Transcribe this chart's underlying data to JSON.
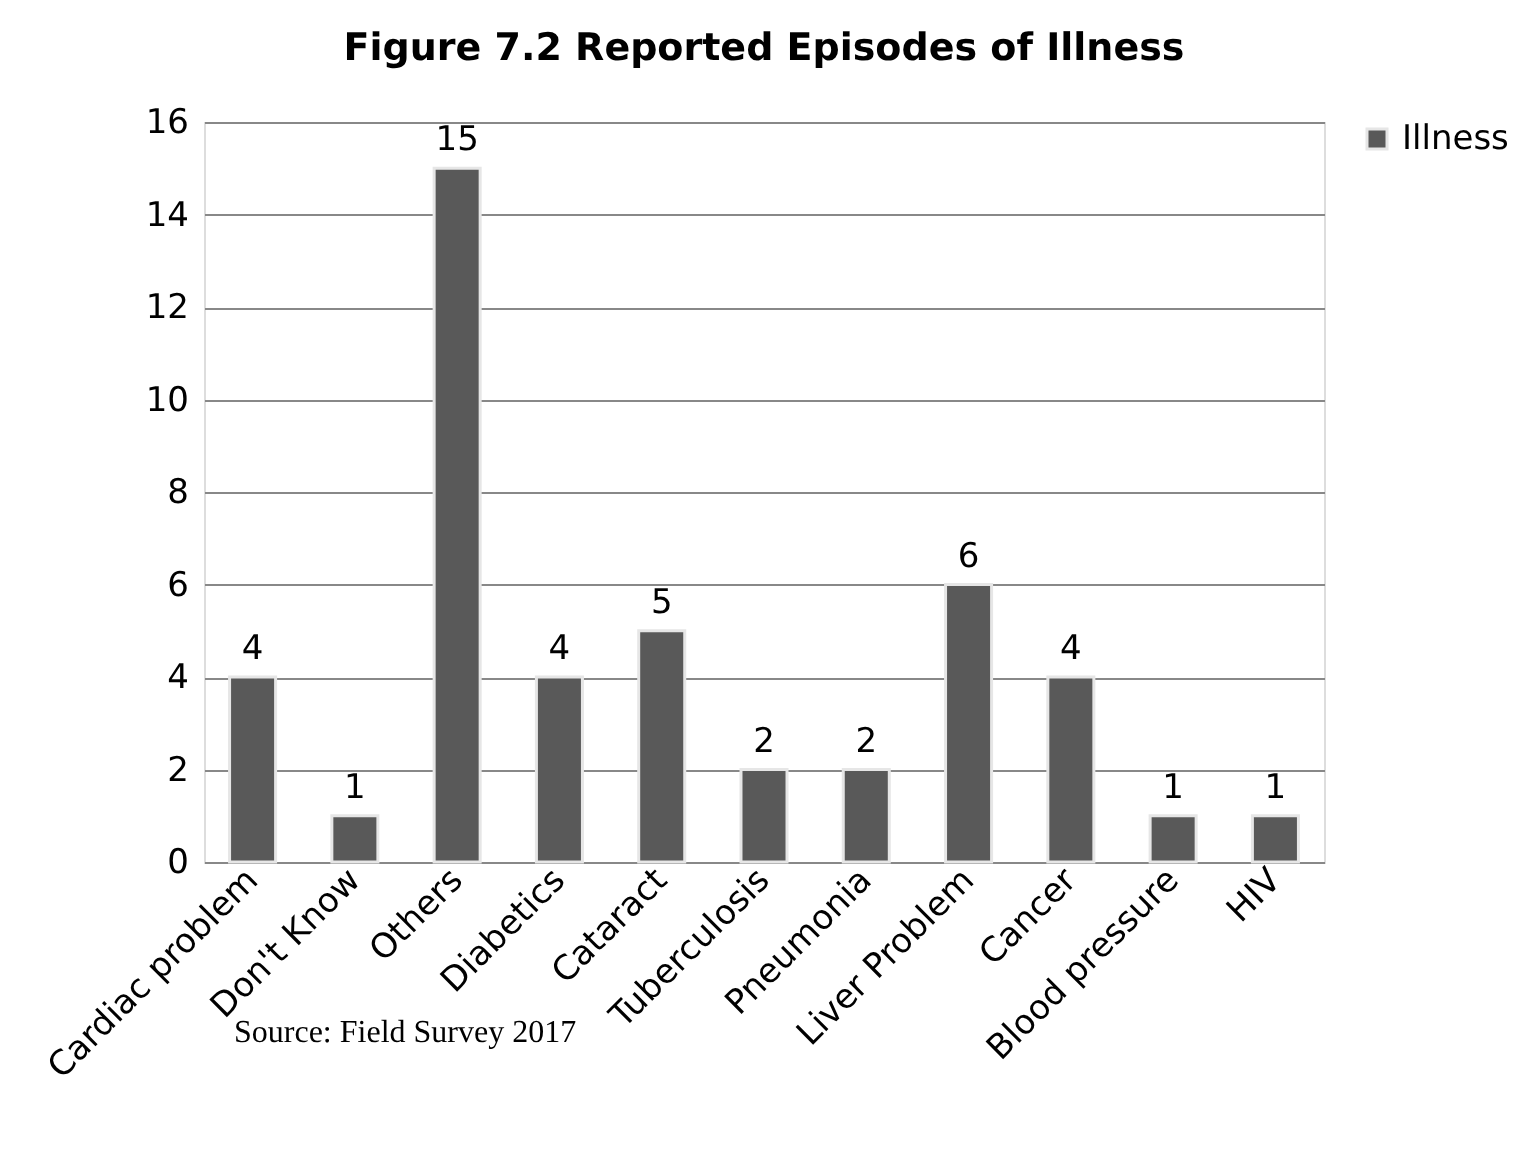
{
  "chart_data": {
    "type": "bar",
    "title": "Figure 7.2 Reported Episodes of Illness",
    "categories": [
      "Cardiac problem",
      "Don't Know",
      "Others",
      "Diabetics",
      "Cataract",
      "Tuberculosis",
      "Pneumonia",
      "Liver Problem",
      "Cancer",
      "Blood pressure",
      "HIV"
    ],
    "series": [
      {
        "name": "Illness",
        "color": "#595959",
        "values": [
          4,
          1,
          15,
          4,
          5,
          2,
          2,
          6,
          4,
          1,
          1
        ]
      }
    ],
    "ylim": [
      0,
      16
    ],
    "yticks": [
      0,
      2,
      4,
      6,
      8,
      10,
      12,
      14,
      16
    ],
    "grid": "y",
    "legend": "right",
    "data_labels": true,
    "annotations": [
      "Source: Field Survey 2017"
    ]
  }
}
